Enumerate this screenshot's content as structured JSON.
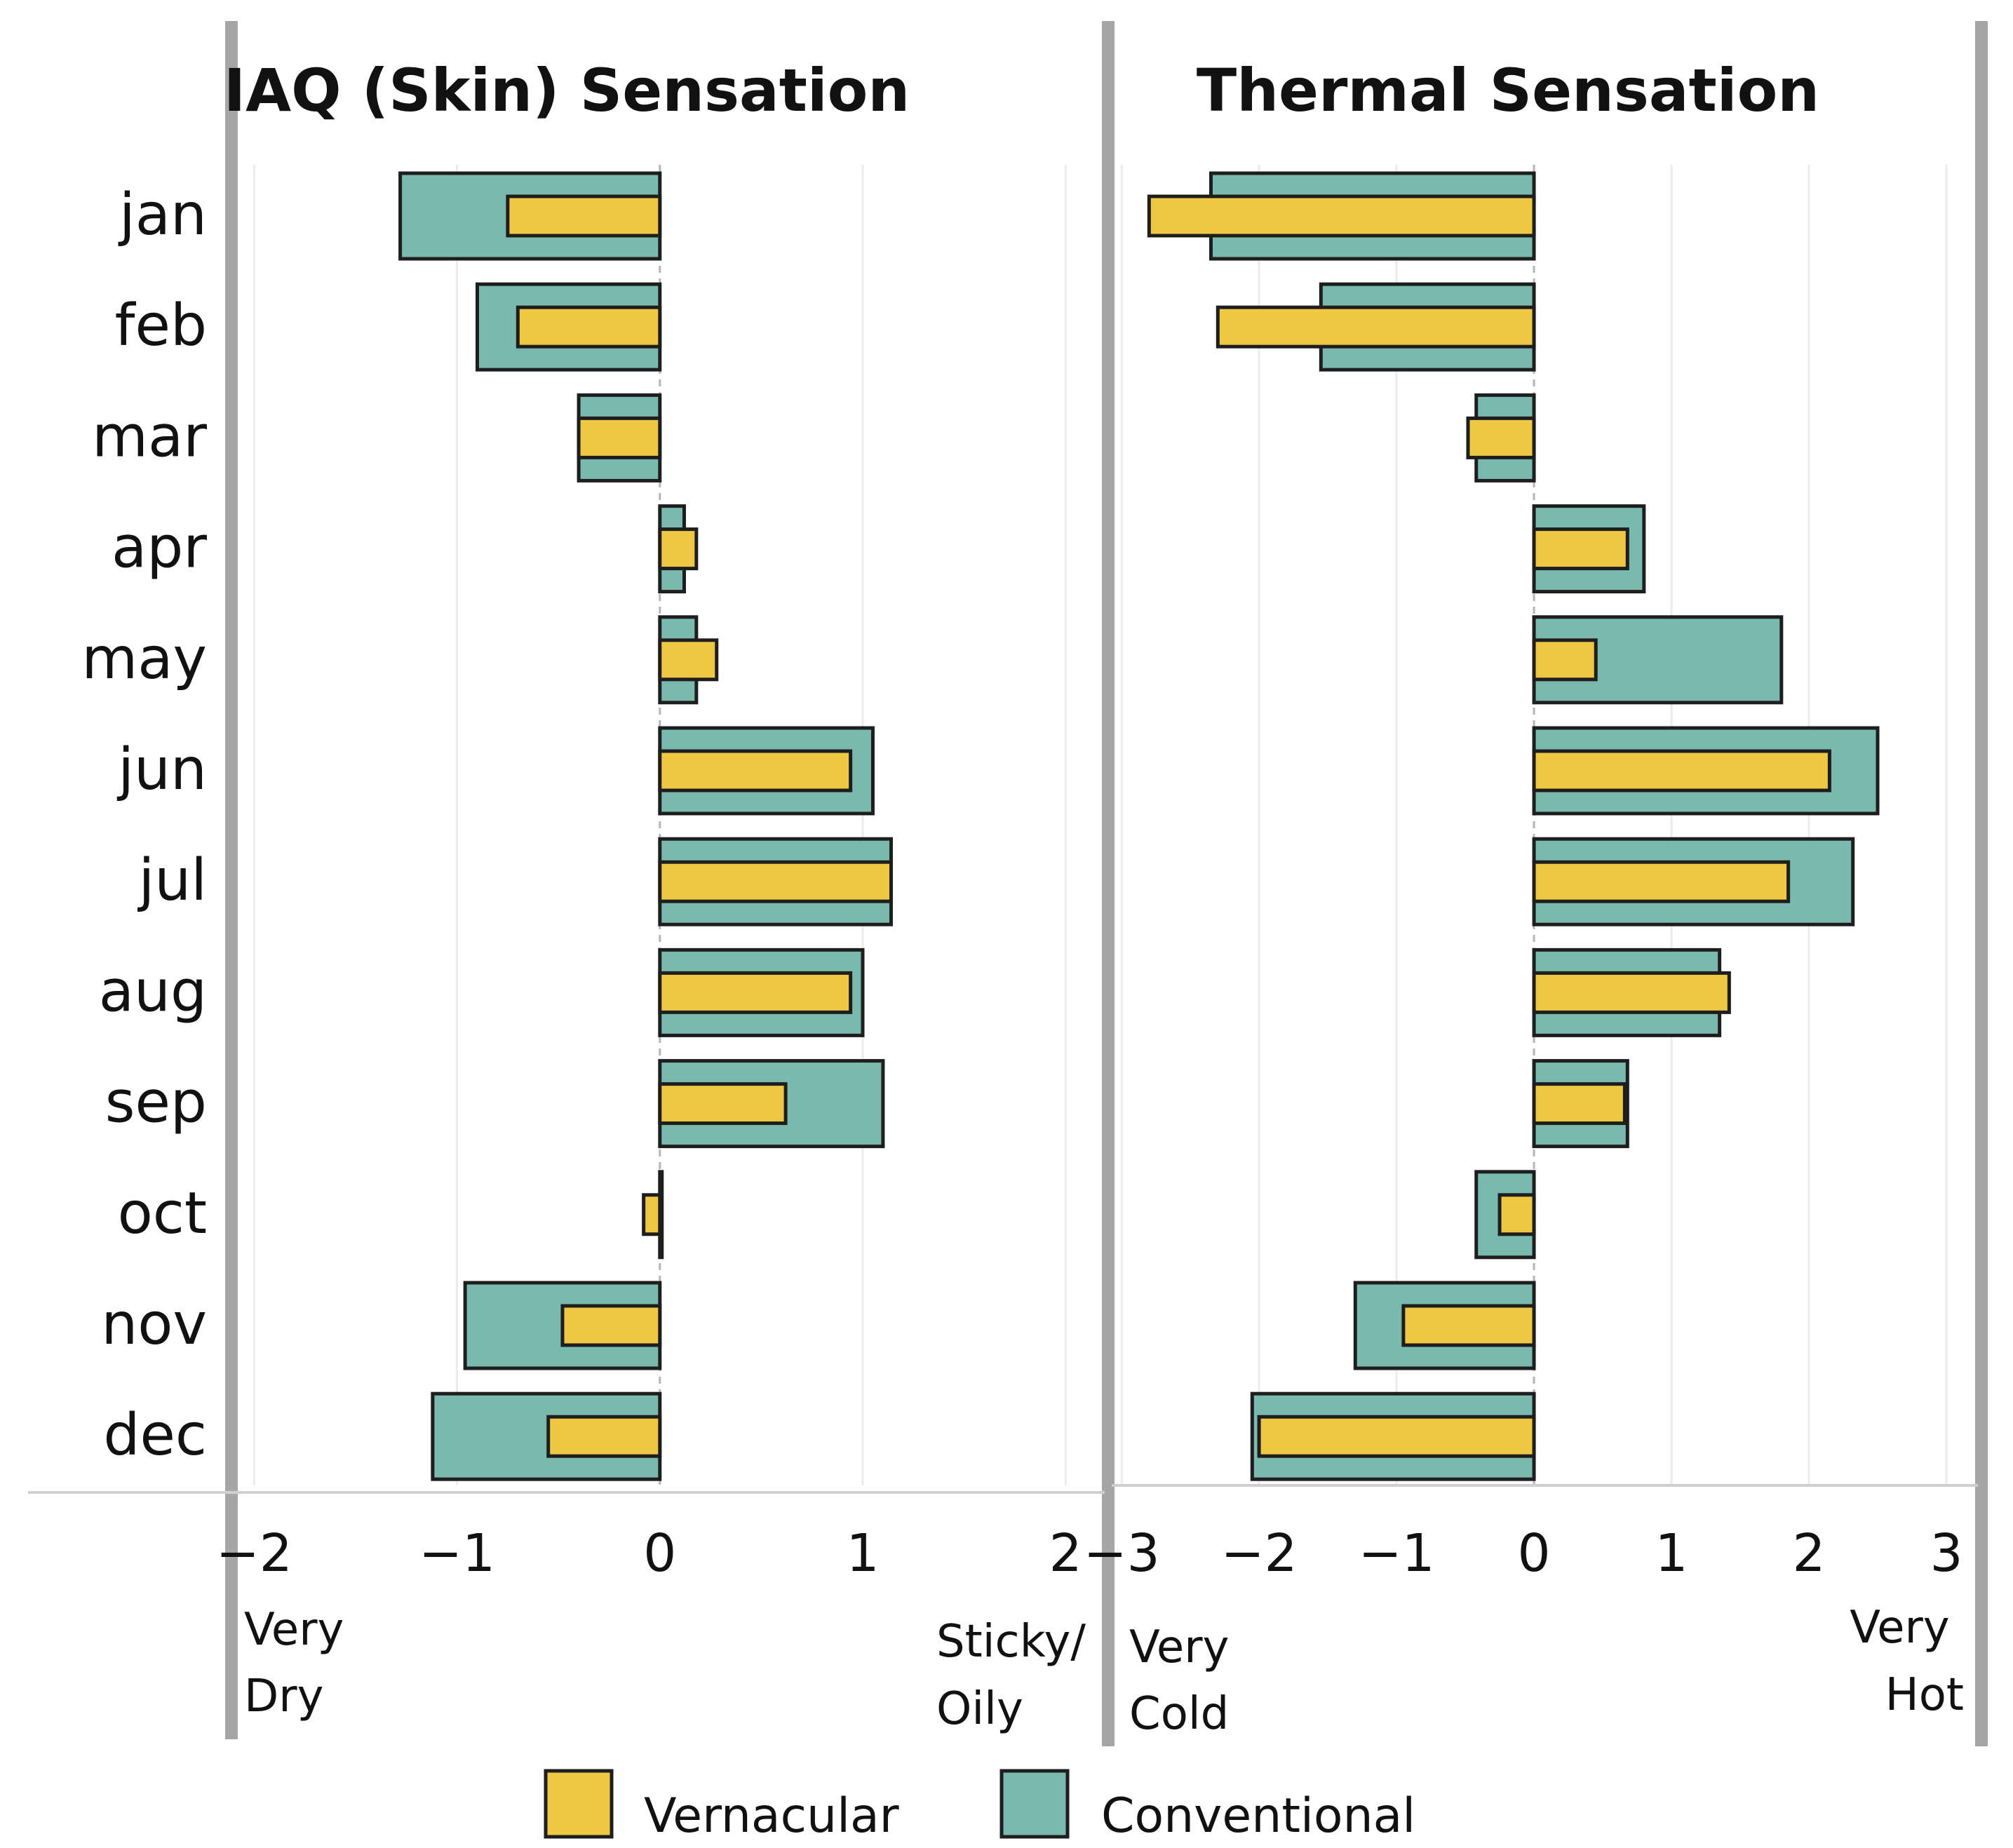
{
  "colors": {
    "vernacular": "#eec843",
    "conventional": "#7ab9ae",
    "outline": "#1e1e1e",
    "frame": "#a6a6a6",
    "grid": "#ebebeb",
    "text": "#111111"
  },
  "chart_data": [
    {
      "type": "bar",
      "orientation": "horizontal",
      "title": "IAQ (Skin) Sensation",
      "categories": [
        "jan",
        "feb",
        "mar",
        "apr",
        "may",
        "jun",
        "jul",
        "aug",
        "sep",
        "oct",
        "nov",
        "dec"
      ],
      "series": [
        {
          "name": "Conventional",
          "values": [
            -1.28,
            -0.9,
            -0.4,
            0.12,
            0.18,
            1.05,
            1.14,
            1.0,
            1.1,
            0.01,
            -0.96,
            -1.12
          ]
        },
        {
          "name": "Vernacular",
          "values": [
            -0.75,
            -0.7,
            -0.4,
            0.18,
            0.28,
            0.94,
            1.14,
            0.94,
            0.62,
            -0.08,
            -0.48,
            -0.55
          ]
        }
      ],
      "xlim": [
        -2,
        2
      ],
      "xticks": [
        -2,
        -1,
        0,
        1,
        2
      ],
      "xtick_labels": [
        "−2",
        "−1",
        "0",
        "1",
        "2"
      ],
      "xlim_view": [
        -2.06,
        2.02
      ],
      "grid": "vertical",
      "annotations": {
        "left": [
          "Very",
          "Dry"
        ],
        "right": [
          "Sticky/",
          "Oily"
        ]
      }
    },
    {
      "type": "bar",
      "orientation": "horizontal",
      "title": "Thermal Sensation",
      "categories": [
        "jan",
        "feb",
        "mar",
        "apr",
        "may",
        "jun",
        "jul",
        "aug",
        "sep",
        "oct",
        "nov",
        "dec"
      ],
      "series": [
        {
          "name": "Conventional",
          "values": [
            -2.35,
            -1.55,
            -0.42,
            0.8,
            1.8,
            2.5,
            2.32,
            1.35,
            0.68,
            -0.42,
            -1.3,
            -2.05
          ]
        },
        {
          "name": "Vernacular",
          "values": [
            -2.8,
            -2.3,
            -0.48,
            0.68,
            0.45,
            2.15,
            1.85,
            1.42,
            0.66,
            -0.25,
            -0.95,
            -2.0
          ]
        }
      ],
      "xlim": [
        -3,
        3
      ],
      "xticks": [
        -3,
        -2,
        -1,
        0,
        1,
        2,
        3
      ],
      "xtick_labels": [
        "−3",
        "−2",
        "−1",
        "0",
        "1",
        "2",
        "3"
      ],
      "xlim_view": [
        -2.97,
        3.0
      ],
      "grid": "vertical",
      "annotations": {
        "left": [
          "Very",
          "Cold"
        ],
        "right": [
          "Very",
          "Hot"
        ]
      }
    }
  ],
  "legend": {
    "items": [
      {
        "label": "Vernacular",
        "color_key": "vernacular"
      },
      {
        "label": "Conventional",
        "color_key": "conventional"
      }
    ],
    "position": "bottom-center"
  }
}
